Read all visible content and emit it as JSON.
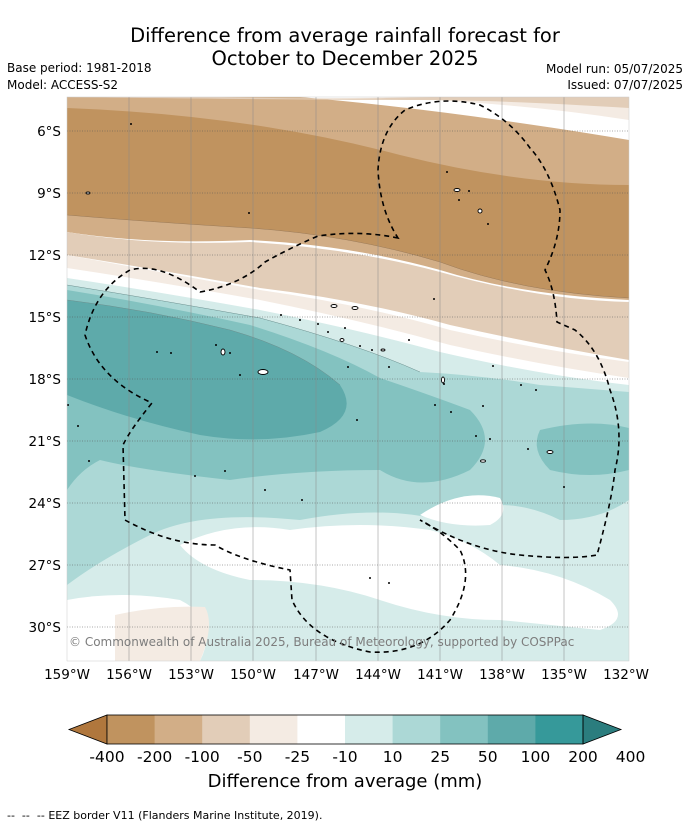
{
  "header": {
    "title_line1": "Difference from average rainfall forecast for",
    "title_line2": "October to December 2025",
    "base_period": "Base period: 1981-2018",
    "model": "Model: ACCESS-S2",
    "model_run": "Model run: 05/07/2025",
    "issued": "Issued: 07/07/2025"
  },
  "map": {
    "lat_labels": [
      "6°S",
      "9°S",
      "12°S",
      "15°S",
      "18°S",
      "21°S",
      "24°S",
      "27°S",
      "30°S"
    ],
    "lon_labels": [
      "159°W",
      "156°W",
      "153°W",
      "150°W",
      "147°W",
      "144°W",
      "141°W",
      "138°W",
      "135°W",
      "132°W"
    ],
    "lat_range": [
      -31.5,
      -4.5
    ],
    "lon_range": [
      -159,
      -132
    ],
    "copyright": "© Commonwealth of Australia 2025, Bureau of Meteorology, supported by COSPPac",
    "grid": true
  },
  "colorbar": {
    "labels": [
      "-400",
      "-200",
      "-100",
      "-50",
      "-25",
      "-10",
      "10",
      "25",
      "50",
      "100",
      "200",
      "400"
    ],
    "colors": [
      "#b0773d",
      "#c0935f",
      "#d2ae87",
      "#e2cdb8",
      "#f4ebe3",
      "#ffffff",
      "#d6ecea",
      "#acd8d6",
      "#83c2c0",
      "#5eaaaa",
      "#36999a",
      "#2b7d7e"
    ],
    "title": "Difference from average (mm)"
  },
  "footer": {
    "eez_note": "EEZ border V11 (Flanders Marine Institute, 2019)."
  }
}
